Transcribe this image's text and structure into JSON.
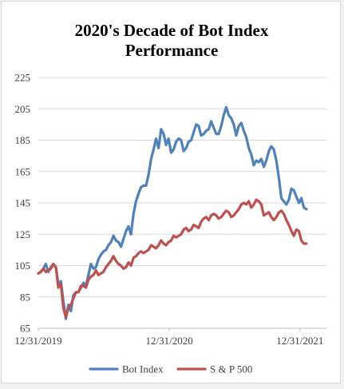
{
  "chart_data": {
    "type": "line",
    "title_lines": [
      "2020's Decade of Bot Index",
      "Performance"
    ],
    "xlabel": "",
    "ylabel": "",
    "ylim": [
      65,
      225
    ],
    "yticks": [
      65,
      85,
      105,
      125,
      145,
      165,
      185,
      205,
      225
    ],
    "xlim": [
      "2019-12-31",
      "2022-03-15"
    ],
    "xticks": [
      {
        "date": "2019-12-31",
        "label": "12/31/2019"
      },
      {
        "date": "2020-12-31",
        "label": "12/31/2020"
      },
      {
        "date": "2021-12-31",
        "label": "12/31/2021"
      }
    ],
    "grid": {
      "horizontal": true,
      "vertical": false
    },
    "legend_position": "bottom",
    "series": [
      {
        "name": "Bot Index",
        "color": "#4f81bd",
        "points": [
          [
            "2019-12-31",
            100
          ],
          [
            "2020-01-07",
            101
          ],
          [
            "2020-01-14",
            103
          ],
          [
            "2020-01-21",
            106
          ],
          [
            "2020-01-28",
            101
          ],
          [
            "2020-02-04",
            104
          ],
          [
            "2020-02-11",
            106
          ],
          [
            "2020-02-18",
            104
          ],
          [
            "2020-02-25",
            93
          ],
          [
            "2020-03-03",
            95
          ],
          [
            "2020-03-10",
            82
          ],
          [
            "2020-03-17",
            71
          ],
          [
            "2020-03-24",
            80
          ],
          [
            "2020-03-31",
            76
          ],
          [
            "2020-04-07",
            86
          ],
          [
            "2020-04-14",
            88
          ],
          [
            "2020-04-21",
            88
          ],
          [
            "2020-04-28",
            91
          ],
          [
            "2020-05-05",
            94
          ],
          [
            "2020-05-12",
            92
          ],
          [
            "2020-05-19",
            99
          ],
          [
            "2020-05-26",
            106
          ],
          [
            "2020-06-02",
            103
          ],
          [
            "2020-06-09",
            104
          ],
          [
            "2020-06-16",
            109
          ],
          [
            "2020-06-23",
            112
          ],
          [
            "2020-06-30",
            114
          ],
          [
            "2020-07-07",
            115
          ],
          [
            "2020-07-14",
            118
          ],
          [
            "2020-07-21",
            120
          ],
          [
            "2020-07-28",
            124
          ],
          [
            "2020-08-04",
            121
          ],
          [
            "2020-08-11",
            120
          ],
          [
            "2020-08-18",
            117
          ],
          [
            "2020-08-25",
            122
          ],
          [
            "2020-09-01",
            127
          ],
          [
            "2020-09-08",
            130
          ],
          [
            "2020-09-15",
            125
          ],
          [
            "2020-09-22",
            138
          ],
          [
            "2020-09-29",
            146
          ],
          [
            "2020-10-06",
            151
          ],
          [
            "2020-10-13",
            155
          ],
          [
            "2020-10-20",
            156
          ],
          [
            "2020-10-27",
            156
          ],
          [
            "2020-11-03",
            163
          ],
          [
            "2020-11-10",
            173
          ],
          [
            "2020-11-17",
            179
          ],
          [
            "2020-11-24",
            186
          ],
          [
            "2020-12-01",
            180
          ],
          [
            "2020-12-08",
            192
          ],
          [
            "2020-12-15",
            189
          ],
          [
            "2020-12-22",
            182
          ],
          [
            "2020-12-29",
            186
          ],
          [
            "2021-01-05",
            177
          ],
          [
            "2021-01-12",
            179
          ],
          [
            "2021-01-19",
            184
          ],
          [
            "2021-01-26",
            186
          ],
          [
            "2021-02-02",
            185
          ],
          [
            "2021-02-09",
            178
          ],
          [
            "2021-02-16",
            180
          ],
          [
            "2021-02-23",
            184
          ],
          [
            "2021-03-02",
            185
          ],
          [
            "2021-03-09",
            190
          ],
          [
            "2021-03-16",
            195
          ],
          [
            "2021-03-23",
            194
          ],
          [
            "2021-03-30",
            188
          ],
          [
            "2021-04-06",
            189
          ],
          [
            "2021-04-13",
            191
          ],
          [
            "2021-04-20",
            192
          ],
          [
            "2021-04-27",
            197
          ],
          [
            "2021-05-04",
            193
          ],
          [
            "2021-05-11",
            189
          ],
          [
            "2021-05-18",
            189
          ],
          [
            "2021-05-25",
            194
          ],
          [
            "2021-06-01",
            201
          ],
          [
            "2021-06-08",
            206
          ],
          [
            "2021-06-15",
            201
          ],
          [
            "2021-06-22",
            199
          ],
          [
            "2021-06-29",
            195
          ],
          [
            "2021-07-06",
            188
          ],
          [
            "2021-07-13",
            194
          ],
          [
            "2021-07-20",
            196
          ],
          [
            "2021-07-27",
            191
          ],
          [
            "2021-08-03",
            187
          ],
          [
            "2021-08-10",
            180
          ],
          [
            "2021-08-17",
            176
          ],
          [
            "2021-08-24",
            169
          ],
          [
            "2021-08-31",
            172
          ],
          [
            "2021-09-07",
            171
          ],
          [
            "2021-09-14",
            173
          ],
          [
            "2021-09-21",
            168
          ],
          [
            "2021-09-28",
            172
          ],
          [
            "2021-10-05",
            178
          ],
          [
            "2021-10-12",
            181
          ],
          [
            "2021-10-19",
            179
          ],
          [
            "2021-10-26",
            172
          ],
          [
            "2021-11-02",
            161
          ],
          [
            "2021-11-09",
            148
          ],
          [
            "2021-11-16",
            146
          ],
          [
            "2021-11-23",
            144
          ],
          [
            "2021-11-30",
            147
          ],
          [
            "2021-12-07",
            154
          ],
          [
            "2021-12-14",
            153
          ],
          [
            "2021-12-21",
            149
          ],
          [
            "2021-12-28",
            145
          ],
          [
            "2022-01-04",
            148
          ],
          [
            "2022-01-11",
            142
          ],
          [
            "2022-01-18",
            141
          ]
        ]
      },
      {
        "name": "S & P 500",
        "color": "#c0504d",
        "points": [
          [
            "2019-12-31",
            100
          ],
          [
            "2020-01-07",
            101
          ],
          [
            "2020-01-14",
            103
          ],
          [
            "2020-01-21",
            101
          ],
          [
            "2020-01-28",
            102
          ],
          [
            "2020-02-04",
            103
          ],
          [
            "2020-02-11",
            106
          ],
          [
            "2020-02-18",
            104
          ],
          [
            "2020-02-25",
            91
          ],
          [
            "2020-03-03",
            93
          ],
          [
            "2020-03-10",
            78
          ],
          [
            "2020-03-17",
            72
          ],
          [
            "2020-03-24",
            78
          ],
          [
            "2020-03-31",
            80
          ],
          [
            "2020-04-07",
            84
          ],
          [
            "2020-04-14",
            88
          ],
          [
            "2020-04-21",
            88
          ],
          [
            "2020-04-28",
            92
          ],
          [
            "2020-05-05",
            92
          ],
          [
            "2020-05-12",
            91
          ],
          [
            "2020-05-19",
            96
          ],
          [
            "2020-05-26",
            98
          ],
          [
            "2020-06-02",
            99
          ],
          [
            "2020-06-09",
            102
          ],
          [
            "2020-06-16",
            99
          ],
          [
            "2020-06-23",
            100
          ],
          [
            "2020-06-30",
            101
          ],
          [
            "2020-07-07",
            104
          ],
          [
            "2020-07-14",
            106
          ],
          [
            "2020-07-21",
            108
          ],
          [
            "2020-07-28",
            111
          ],
          [
            "2020-08-04",
            108
          ],
          [
            "2020-08-11",
            106
          ],
          [
            "2020-08-18",
            105
          ],
          [
            "2020-08-25",
            103
          ],
          [
            "2020-09-01",
            104
          ],
          [
            "2020-09-08",
            107
          ],
          [
            "2020-09-15",
            105
          ],
          [
            "2020-09-22",
            110
          ],
          [
            "2020-09-29",
            111
          ],
          [
            "2020-10-06",
            113
          ],
          [
            "2020-10-13",
            114
          ],
          [
            "2020-10-20",
            113
          ],
          [
            "2020-10-27",
            114
          ],
          [
            "2020-11-03",
            115
          ],
          [
            "2020-11-10",
            118
          ],
          [
            "2020-11-17",
            117
          ],
          [
            "2020-11-24",
            116
          ],
          [
            "2020-12-01",
            118
          ],
          [
            "2020-12-08",
            121
          ],
          [
            "2020-12-15",
            119
          ],
          [
            "2020-12-22",
            118
          ],
          [
            "2020-12-29",
            120
          ],
          [
            "2021-01-05",
            121
          ],
          [
            "2021-01-12",
            124
          ],
          [
            "2021-01-19",
            123
          ],
          [
            "2021-01-26",
            124
          ],
          [
            "2021-02-02",
            125
          ],
          [
            "2021-02-09",
            128
          ],
          [
            "2021-02-16",
            129
          ],
          [
            "2021-02-23",
            127
          ],
          [
            "2021-03-02",
            128
          ],
          [
            "2021-03-09",
            131
          ],
          [
            "2021-03-16",
            130
          ],
          [
            "2021-03-23",
            129
          ],
          [
            "2021-03-30",
            133
          ],
          [
            "2021-04-06",
            135
          ],
          [
            "2021-04-13",
            136
          ],
          [
            "2021-04-20",
            134
          ],
          [
            "2021-04-27",
            137
          ],
          [
            "2021-05-04",
            138
          ],
          [
            "2021-05-11",
            137
          ],
          [
            "2021-05-18",
            135
          ],
          [
            "2021-05-25",
            136
          ],
          [
            "2021-06-01",
            138
          ],
          [
            "2021-06-08",
            140
          ],
          [
            "2021-06-15",
            139
          ],
          [
            "2021-06-22",
            136
          ],
          [
            "2021-06-29",
            137
          ],
          [
            "2021-07-06",
            139
          ],
          [
            "2021-07-13",
            141
          ],
          [
            "2021-07-20",
            144
          ],
          [
            "2021-07-27",
            145
          ],
          [
            "2021-08-03",
            144
          ],
          [
            "2021-08-10",
            146
          ],
          [
            "2021-08-17",
            142
          ],
          [
            "2021-08-24",
            144
          ],
          [
            "2021-08-31",
            147
          ],
          [
            "2021-09-07",
            146
          ],
          [
            "2021-09-14",
            144
          ],
          [
            "2021-09-21",
            137
          ],
          [
            "2021-09-28",
            138
          ],
          [
            "2021-10-05",
            139
          ],
          [
            "2021-10-12",
            136
          ],
          [
            "2021-10-19",
            134
          ],
          [
            "2021-10-26",
            136
          ],
          [
            "2021-11-02",
            139
          ],
          [
            "2021-11-09",
            140
          ],
          [
            "2021-11-16",
            138
          ],
          [
            "2021-11-23",
            134
          ],
          [
            "2021-11-30",
            131
          ],
          [
            "2021-12-07",
            127
          ],
          [
            "2021-12-14",
            124
          ],
          [
            "2021-12-21",
            128
          ],
          [
            "2021-12-28",
            127
          ],
          [
            "2022-01-04",
            121
          ],
          [
            "2022-01-11",
            119
          ],
          [
            "2022-01-18",
            119
          ]
        ]
      }
    ]
  }
}
